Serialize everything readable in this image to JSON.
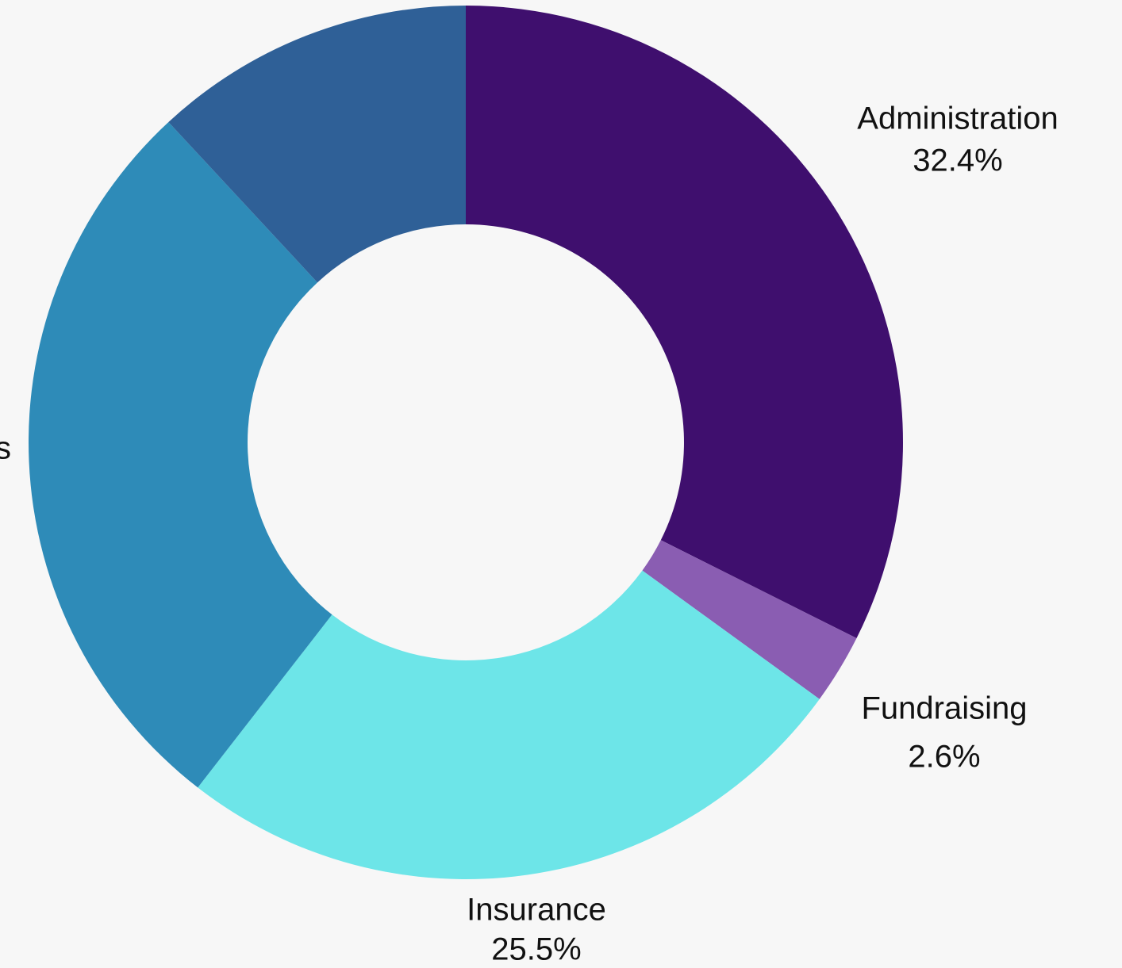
{
  "chart_data": {
    "type": "donut",
    "categories": [
      "Administration",
      "Fundraising",
      "Insurance",
      "s",
      null
    ],
    "values": [
      32.4,
      2.6,
      25.5,
      27.6,
      11.9
    ],
    "value_labels": [
      "32.4%",
      "2.6%",
      "25.5%",
      null,
      null
    ],
    "colors": [
      "#3f0f6e",
      "#8a5db2",
      "#6de5e8",
      "#2e8bb8",
      "#2f6097"
    ]
  }
}
